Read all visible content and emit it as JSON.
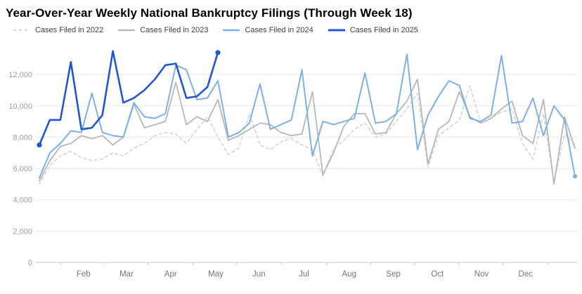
{
  "chart_data": {
    "type": "line",
    "title": "Year-Over-Year Weekly National Bankruptcy Filings (Through Week 18)",
    "xlabel": "",
    "ylabel": "",
    "x_unit": "week of year",
    "weeks": 52,
    "ylim": [
      0,
      13800
    ],
    "grid": "horizontal",
    "legend_position": "top",
    "y_ticks": [
      0,
      2000,
      4000,
      6000,
      8000,
      10000,
      12000
    ],
    "y_tick_labels": [
      "0",
      "2,000",
      "4,000",
      "6,000",
      "8,000",
      "10,000",
      "12,000"
    ],
    "x_tick_labels": [
      "Feb",
      "Mar",
      "Apr",
      "May",
      "Jun",
      "Jul",
      "Aug",
      "Sep",
      "Oct",
      "Nov",
      "Dec"
    ],
    "x_tick_week_positions": [
      5.2,
      9.3,
      13.5,
      17.8,
      21.9,
      26.2,
      30.5,
      34.7,
      38.9,
      43.1,
      47.3
    ],
    "series": [
      {
        "name": "Cases Filed in 2022",
        "color": "#d4d4d4",
        "dash": "4 4",
        "width": 1.6,
        "markers": [],
        "values": [
          5000,
          6200,
          6800,
          7100,
          6700,
          6500,
          6600,
          7000,
          6800,
          7300,
          7600,
          8100,
          8300,
          8200,
          7600,
          8500,
          9300,
          8000,
          6900,
          7300,
          9500,
          7500,
          7200,
          7700,
          7900,
          7500,
          7200,
          5500,
          7300,
          7800,
          8500,
          8900,
          8000,
          8200,
          9000,
          9800,
          10800,
          6100,
          8100,
          8600,
          9100,
          11300,
          8900,
          9200,
          9600,
          9800,
          7600,
          6600,
          9500,
          5100,
          8200,
          7500
        ]
      },
      {
        "name": "Cases Filed in 2023",
        "color": "#b7b7b7",
        "dash": null,
        "width": 1.8,
        "markers": [],
        "values": [
          5200,
          6500,
          7400,
          7600,
          8100,
          7900,
          8100,
          7500,
          8000,
          10100,
          8600,
          8800,
          9000,
          11500,
          8800,
          9300,
          9000,
          10400,
          7800,
          8100,
          8500,
          8900,
          8800,
          8300,
          8100,
          8200,
          10900,
          5600,
          7000,
          8700,
          9500,
          9500,
          8200,
          8300,
          9500,
          10300,
          11700,
          6300,
          8500,
          9000,
          10900,
          9300,
          8900,
          9200,
          9800,
          10300,
          8100,
          7600,
          10400,
          5000,
          9300,
          7300
        ]
      },
      {
        "name": "Cases Filed in 2024",
        "color": "#7eb0e8",
        "dash": null,
        "width": 2,
        "markers": [
          52
        ],
        "values": [
          5400,
          7000,
          7600,
          8400,
          8300,
          10800,
          8300,
          8100,
          8000,
          10200,
          9300,
          9200,
          9500,
          12600,
          12300,
          10400,
          10500,
          11600,
          8000,
          8300,
          8900,
          11400,
          8500,
          8800,
          9100,
          12300,
          6800,
          9000,
          8800,
          9000,
          9200,
          12100,
          8900,
          9000,
          9500,
          13300,
          7200,
          9400,
          10600,
          11600,
          11300,
          9200,
          9000,
          9400,
          13200,
          8900,
          9000,
          10500,
          8100,
          10000,
          9100,
          5500
        ]
      },
      {
        "name": "Cases Filed in 2025",
        "color": "#2057d0",
        "dash": null,
        "width": 2.6,
        "markers": [
          1,
          18
        ],
        "values": [
          7500,
          9100,
          9100,
          12800,
          8500,
          8600,
          9400,
          13500,
          10200,
          10500,
          11000,
          11700,
          12600,
          12700,
          10500,
          10600,
          11200,
          13400
        ]
      }
    ]
  },
  "style": {
    "gridline_color": "#e8e8e8",
    "baseline_color": "#c9c9c9",
    "tick_color": "#c9c9c9"
  }
}
